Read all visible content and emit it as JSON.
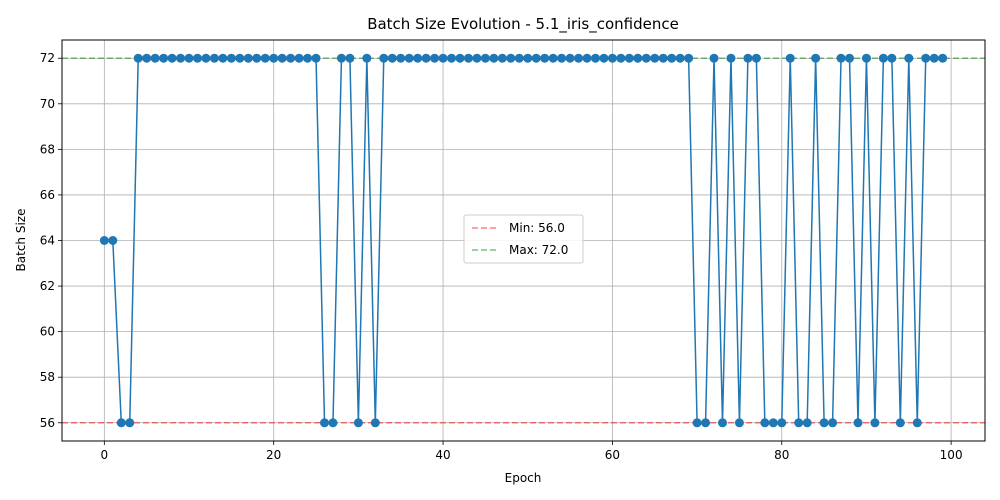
{
  "chart_data": {
    "type": "line",
    "title": "Batch Size Evolution - 5.1_iris_confidence",
    "xlabel": "Epoch",
    "ylabel": "Batch Size",
    "xlim": [
      -5,
      104
    ],
    "ylim": [
      55.2,
      72.8
    ],
    "xticks": [
      0,
      20,
      40,
      60,
      80,
      100
    ],
    "yticks": [
      56,
      58,
      60,
      62,
      64,
      66,
      68,
      70,
      72
    ],
    "grid": true,
    "legend_position": "center",
    "series": [
      {
        "color": "#1f77b4",
        "marker": "circle",
        "x": [
          0,
          1,
          2,
          3,
          4,
          5,
          6,
          7,
          8,
          9,
          10,
          11,
          12,
          13,
          14,
          15,
          16,
          17,
          18,
          19,
          20,
          21,
          22,
          23,
          24,
          25,
          26,
          27,
          28,
          29,
          30,
          31,
          32,
          33,
          34,
          35,
          36,
          37,
          38,
          39,
          40,
          41,
          42,
          43,
          44,
          45,
          46,
          47,
          48,
          49,
          50,
          51,
          52,
          53,
          54,
          55,
          56,
          57,
          58,
          59,
          60,
          61,
          62,
          63,
          64,
          65,
          66,
          67,
          68,
          69,
          70,
          71,
          72,
          73,
          74,
          75,
          76,
          77,
          78,
          79,
          80,
          81,
          82,
          83,
          84,
          85,
          86,
          87,
          88,
          89,
          90,
          91,
          92,
          93,
          94,
          95,
          96,
          97,
          98,
          99
        ],
        "values": [
          64,
          64,
          56,
          56,
          72,
          72,
          72,
          72,
          72,
          72,
          72,
          72,
          72,
          72,
          72,
          72,
          72,
          72,
          72,
          72,
          72,
          72,
          72,
          72,
          72,
          72,
          56,
          56,
          72,
          72,
          56,
          72,
          56,
          72,
          72,
          72,
          72,
          72,
          72,
          72,
          72,
          72,
          72,
          72,
          72,
          72,
          72,
          72,
          72,
          72,
          72,
          72,
          72,
          72,
          72,
          72,
          72,
          72,
          72,
          72,
          72,
          72,
          72,
          72,
          72,
          72,
          72,
          72,
          72,
          72,
          56,
          56,
          72,
          56,
          72,
          56,
          72,
          72,
          56,
          56,
          56,
          72,
          56,
          56,
          72,
          56,
          56,
          72,
          72,
          56,
          72,
          56,
          72,
          72,
          56,
          72,
          56,
          72,
          72,
          72
        ]
      }
    ],
    "reference_lines": [
      {
        "label": "Min: 56.0",
        "value": 56.0,
        "color": "#ff0000",
        "style": "dashed"
      },
      {
        "label": "Max: 72.0",
        "value": 72.0,
        "color": "#008000",
        "style": "dashed"
      }
    ]
  }
}
